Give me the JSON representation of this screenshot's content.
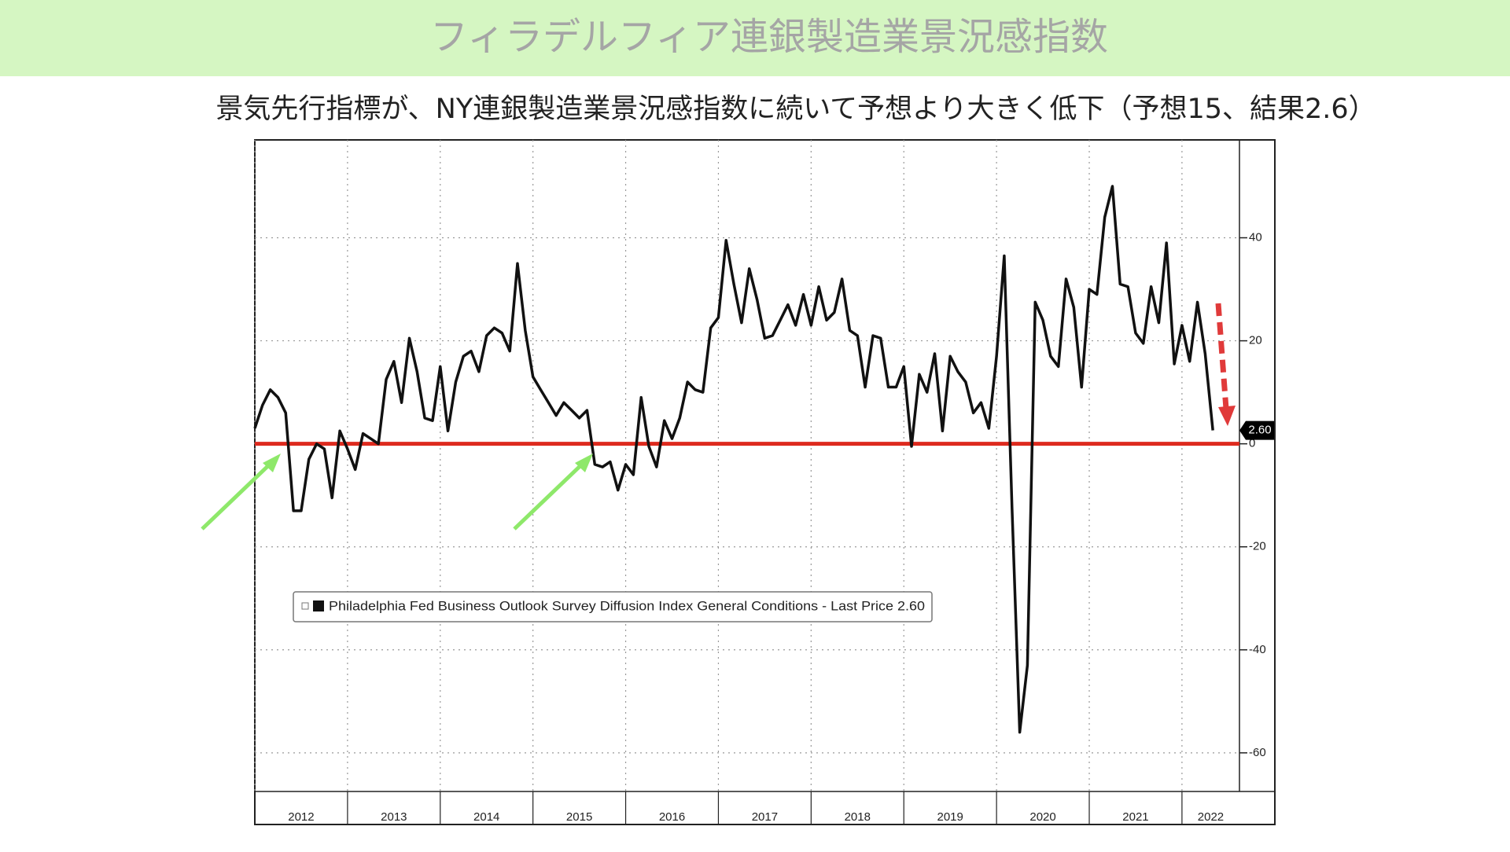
{
  "header": {
    "title": "フィラデルフィア連銀製造業景況感指数",
    "subtitle": "景気先行指標が、NY連銀製造業景況感指数に続いて予想より大きく低下（予想15、結果2.6）"
  },
  "chart_data": {
    "type": "line",
    "grid": true,
    "xlim": [
      2012,
      2022.62
    ],
    "xticks": [
      2012,
      2013,
      2014,
      2015,
      2016,
      2017,
      2018,
      2019,
      2020,
      2021,
      2022
    ],
    "ylim": [
      -67.5,
      59
    ],
    "yticks": [
      -60,
      -40,
      -20,
      0,
      20,
      40
    ],
    "last_price_label": "2.60",
    "series": [
      {
        "name": "Philadelphia Fed Business Outlook Survey Diffusion Index General Conditions - Last Price 2.60",
        "color": "#111111",
        "x": [
          2012,
          2012.083,
          2012.167,
          2012.25,
          2012.333,
          2012.417,
          2012.5,
          2012.583,
          2012.667,
          2012.75,
          2012.833,
          2012.917,
          2013,
          2013.083,
          2013.167,
          2013.25,
          2013.333,
          2013.417,
          2013.5,
          2013.583,
          2013.667,
          2013.75,
          2013.833,
          2013.917,
          2014,
          2014.083,
          2014.167,
          2014.25,
          2014.333,
          2014.417,
          2014.5,
          2014.583,
          2014.667,
          2014.75,
          2014.833,
          2014.917,
          2015,
          2015.083,
          2015.167,
          2015.25,
          2015.333,
          2015.417,
          2015.5,
          2015.583,
          2015.667,
          2015.75,
          2015.833,
          2015.917,
          2016,
          2016.083,
          2016.167,
          2016.25,
          2016.333,
          2016.417,
          2016.5,
          2016.583,
          2016.667,
          2016.75,
          2016.833,
          2016.917,
          2017,
          2017.083,
          2017.167,
          2017.25,
          2017.333,
          2017.417,
          2017.5,
          2017.583,
          2017.667,
          2017.75,
          2017.833,
          2017.917,
          2018,
          2018.083,
          2018.167,
          2018.25,
          2018.333,
          2018.417,
          2018.5,
          2018.583,
          2018.667,
          2018.75,
          2018.833,
          2018.917,
          2019,
          2019.083,
          2019.167,
          2019.25,
          2019.333,
          2019.417,
          2019.5,
          2019.583,
          2019.667,
          2019.75,
          2019.833,
          2019.917,
          2020,
          2020.083,
          2020.167,
          2020.25,
          2020.333,
          2020.417,
          2020.5,
          2020.583,
          2020.667,
          2020.75,
          2020.833,
          2020.917,
          2021,
          2021.083,
          2021.167,
          2021.25,
          2021.333,
          2021.417,
          2021.5,
          2021.583,
          2021.667,
          2021.75,
          2021.833,
          2021.917,
          2022,
          2022.083,
          2022.167,
          2022.25,
          2022.333
        ],
        "values": [
          3,
          7.5,
          10.5,
          9,
          6,
          -13,
          -13,
          -3,
          0,
          -1,
          -10.5,
          2.5,
          -1,
          -5,
          2,
          1,
          0,
          12.5,
          16,
          8,
          20.5,
          14,
          5,
          4.5,
          15,
          2.5,
          12,
          17,
          18,
          14,
          21,
          22.5,
          21.5,
          18,
          35,
          22,
          13,
          10.5,
          8,
          5.5,
          8,
          6.5,
          5,
          6.5,
          -4,
          -4.5,
          -3.5,
          -9,
          -4,
          -6,
          9,
          -0.5,
          -4.5,
          4.5,
          1,
          5,
          12,
          10.5,
          10,
          22.5,
          24.5,
          39.5,
          31,
          23.5,
          34,
          28,
          20.5,
          21,
          24,
          27,
          23,
          29,
          23,
          30.5,
          24,
          25.5,
          32,
          22,
          21,
          11,
          21,
          20.5,
          11,
          11,
          15,
          -0.5,
          13.5,
          10,
          17.5,
          2.5,
          17,
          14,
          12,
          6,
          8,
          3,
          17,
          36.5,
          -12.5,
          -56,
          -43,
          27.5,
          24,
          17,
          15,
          32,
          26.5,
          11,
          30,
          29,
          44,
          50,
          31,
          30.5,
          21.5,
          19.5,
          30.5,
          23.5,
          39,
          15.5,
          23,
          16,
          27.5,
          17.5,
          2.6
        ]
      }
    ]
  }
}
